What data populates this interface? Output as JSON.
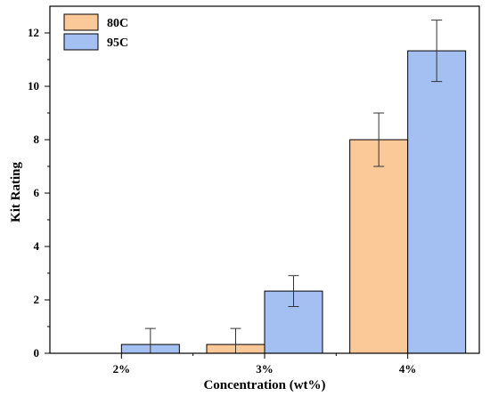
{
  "chart_data": {
    "type": "bar",
    "title": "",
    "xlabel": "Concentration (wt%)",
    "ylabel": "Kit Rating",
    "categories": [
      "2%",
      "3%",
      "4%"
    ],
    "ylim": [
      0,
      13
    ],
    "yticks": [
      0,
      2,
      4,
      6,
      8,
      10,
      12
    ],
    "grid": false,
    "legend_position": "top-left",
    "series": [
      {
        "name": "80C",
        "color": "#fbc898",
        "values": [
          0,
          0.33,
          8
        ],
        "error": [
          0,
          0.6,
          1.0
        ]
      },
      {
        "name": "95C",
        "color": "#a4c0f2",
        "values": [
          0.33,
          2.33,
          11.33
        ],
        "error": [
          0.6,
          0.58,
          1.15
        ]
      }
    ]
  }
}
